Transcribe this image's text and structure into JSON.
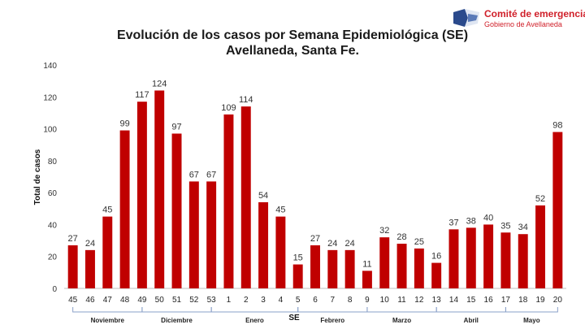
{
  "logo": {
    "name": "Comité de emergencia",
    "subtitle": "Gobierno de Avellaneda",
    "colors": {
      "brand_red": "#d0202a",
      "flag_blue": "#2a4a8c"
    }
  },
  "chart_data": {
    "type": "bar",
    "title": "Evolución de los casos por Semana Epidemiológica (SE)",
    "subtitle": "Avellaneda, Santa Fe.",
    "xlabel": "SE",
    "ylabel": "Total de casos",
    "ylim": [
      0,
      140
    ],
    "yticks": [
      0,
      20,
      40,
      60,
      80,
      100,
      120,
      140
    ],
    "grid": false,
    "bar_color": "#c00000",
    "categories": [
      "45",
      "46",
      "47",
      "48",
      "49",
      "50",
      "51",
      "52",
      "53",
      "1",
      "2",
      "3",
      "4",
      "5",
      "6",
      "7",
      "8",
      "9",
      "10",
      "11",
      "12",
      "13",
      "14",
      "15",
      "16",
      "17",
      "18",
      "19",
      "20"
    ],
    "values": [
      27,
      24,
      45,
      99,
      117,
      124,
      97,
      67,
      67,
      109,
      114,
      54,
      45,
      15,
      27,
      24,
      24,
      11,
      32,
      28,
      25,
      16,
      37,
      38,
      40,
      35,
      34,
      52,
      98
    ],
    "months": [
      {
        "label": "Noviembre",
        "start": 0,
        "end": 4
      },
      {
        "label": "Diciembre",
        "start": 4,
        "end": 8
      },
      {
        "label": "Enero",
        "start": 8,
        "end": 13
      },
      {
        "label": "Febrero",
        "start": 13,
        "end": 17
      },
      {
        "label": "Marzo",
        "start": 17,
        "end": 21
      },
      {
        "label": "Abril",
        "start": 21,
        "end": 25
      },
      {
        "label": "Mayo",
        "start": 25,
        "end": 28
      }
    ]
  }
}
